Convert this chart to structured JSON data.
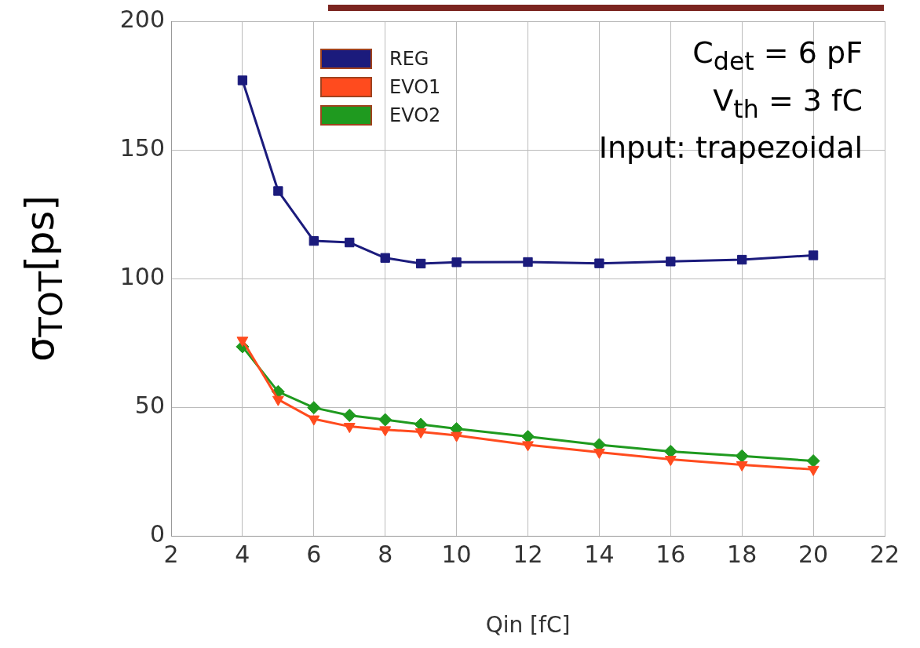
{
  "chart_data": {
    "type": "line",
    "xlabel": "Qin [fC]",
    "ylabel": "σ$_{TOT}$[ps]",
    "annotations": [
      "C$_{det}$ = 6 pF",
      "V$_{th}$ = 3 fC",
      "Input: trapezoidal"
    ],
    "x": [
      4,
      5,
      6,
      7,
      8,
      9,
      10,
      12,
      14,
      16,
      18,
      20
    ],
    "series": [
      {
        "name": "REG",
        "color": "#1b1b7c",
        "marker": "square",
        "values": [
          177,
          134,
          114.6,
          114,
          108,
          105.8,
          106.3,
          106.4,
          105.9,
          106.6,
          107.3,
          109
        ]
      },
      {
        "name": "EVO1",
        "color": "#ff4b1e",
        "marker": "triangle",
        "values": [
          76,
          53,
          45.4,
          42.5,
          41.2,
          40.4,
          39,
          35.4,
          32.5,
          29.7,
          27.6,
          25.8
        ]
      },
      {
        "name": "EVO2",
        "color": "#1f9a1f",
        "marker": "diamond",
        "values": [
          73.5,
          56,
          49.8,
          46.8,
          45.1,
          43.3,
          41.6,
          38.6,
          35.4,
          32.8,
          31,
          29.1
        ]
      }
    ],
    "xlim": [
      2,
      22
    ],
    "xticks": [
      2,
      4,
      6,
      8,
      10,
      12,
      14,
      16,
      18,
      20,
      22
    ],
    "ylim": [
      0,
      200
    ],
    "yticks": [
      0,
      50,
      100,
      150,
      200
    ],
    "grid": true,
    "legend": "top left",
    "line_style": "solid"
  }
}
